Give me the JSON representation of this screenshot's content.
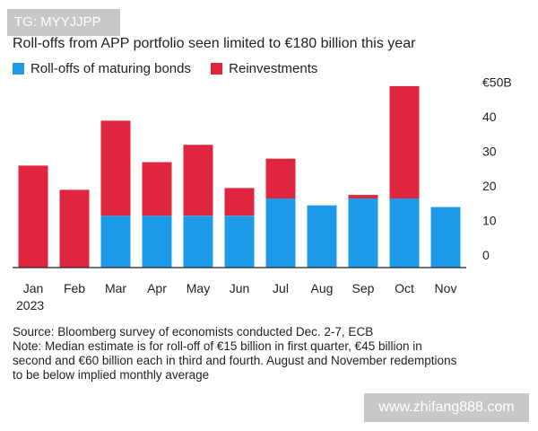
{
  "watermark_top": "TG: MYYJJPP",
  "watermark_bottom": "www.zhifang888.com",
  "colors": {
    "roll_offs": "#1e9be8",
    "reinvestments": "#e0263e",
    "axis": "#222222",
    "grid": "#e6e6e6"
  },
  "chart_data": {
    "type": "bar",
    "stacked": true,
    "title": "Roll-offs from APP portfolio seen limited to €180 billion this year",
    "categories": [
      "Jan",
      "Feb",
      "Mar",
      "Apr",
      "May",
      "Jun",
      "Jul",
      "Aug",
      "Sep",
      "Oct",
      "Nov"
    ],
    "x_year_label": "2023",
    "series": [
      {
        "name": "Roll-offs of maturing bonds",
        "values": [
          0,
          0,
          15,
          15,
          15,
          15,
          20,
          18,
          20,
          20,
          17.5
        ]
      },
      {
        "name": "Reinvestments",
        "values": [
          29.5,
          22.5,
          27.5,
          15.5,
          20.5,
          8,
          11.5,
          0,
          1,
          32.5,
          0
        ]
      }
    ],
    "y_ticks": [
      "0",
      "10",
      "20",
      "30",
      "40",
      "€50B"
    ],
    "y_tick_values": [
      0,
      10,
      20,
      30,
      40,
      50
    ],
    "ylim": [
      -4,
      53
    ],
    "y_axis_position": "right",
    "grid": false,
    "legend_position": "top-left"
  },
  "notes": {
    "source": "Source: Bloomberg survey of economists conducted Dec. 2-7, ECB",
    "note_lines": [
      "Note: Median estimate is for roll-off of €15 billion in first quarter, €45 billion in",
      "second and €60 billion each in third and fourth. August and November redemptions",
      "to be below implied monthly average"
    ]
  }
}
